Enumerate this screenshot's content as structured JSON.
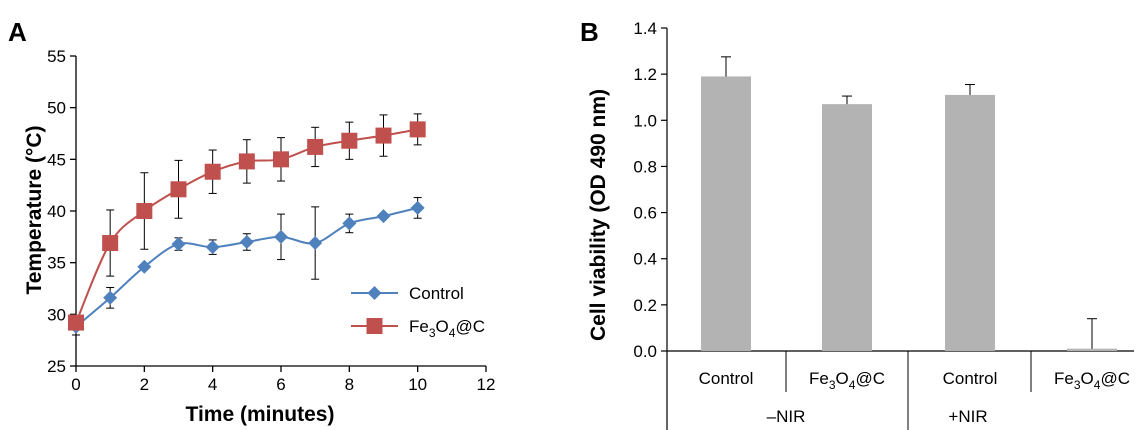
{
  "chart_data": [
    {
      "panel_label": "A",
      "type": "line",
      "xlabel": "Time (minutes)",
      "ylabel": "Temperature (°C)",
      "xlim": [
        0,
        12
      ],
      "ylim": [
        25,
        55
      ],
      "xticks": [
        0,
        2,
        4,
        6,
        8,
        10,
        12
      ],
      "yticks": [
        25,
        30,
        35,
        40,
        45,
        50,
        55
      ],
      "grid": false,
      "legend_position": "bottom-right",
      "x": [
        0,
        1,
        2,
        3,
        4,
        5,
        6,
        7,
        8,
        9,
        10
      ],
      "series": [
        {
          "name": "Control",
          "color": "#4f81bd",
          "marker": "diamond",
          "values": [
            28.8,
            31.6,
            34.6,
            36.8,
            36.5,
            37.0,
            37.5,
            36.9,
            38.8,
            39.5,
            40.3
          ],
          "errors": [
            0.8,
            1.0,
            0,
            0.6,
            0.7,
            0.8,
            2.2,
            3.5,
            0.9,
            0,
            1.0
          ]
        },
        {
          "name": "Fe3O4@C",
          "name_parts": [
            "Fe",
            "3",
            "O",
            "4",
            "@C"
          ],
          "color": "#c0504d",
          "marker": "square",
          "values": [
            29.2,
            36.9,
            40.0,
            42.1,
            43.8,
            44.8,
            45.0,
            46.2,
            46.8,
            47.3,
            47.9
          ],
          "errors": [
            0,
            3.2,
            3.7,
            2.8,
            2.1,
            2.1,
            2.1,
            1.9,
            1.8,
            2.0,
            1.5
          ]
        }
      ]
    },
    {
      "panel_label": "B",
      "type": "bar",
      "ylabel": "Cell viability (OD 490 nm)",
      "ylim": [
        0,
        1.4
      ],
      "yticks": [
        "0.0",
        "0.2",
        "0.4",
        "0.6",
        "0.8",
        "1.0",
        "1.2",
        "1.4"
      ],
      "grid": false,
      "bar_color": "#b3b3b3",
      "categories": [
        "Control",
        "Fe3O4@C",
        "Control",
        "Fe3O4@C"
      ],
      "category_parts": [
        [
          "Control"
        ],
        [
          "Fe",
          "3",
          "O",
          "4",
          "@C"
        ],
        [
          "Control"
        ],
        [
          "Fe",
          "3",
          "O",
          "4",
          "@C"
        ]
      ],
      "groups": [
        "–NIR",
        "+NIR"
      ],
      "values": [
        1.19,
        1.07,
        1.11,
        0.01
      ],
      "errors": [
        0.085,
        0.035,
        0.045,
        0.13
      ]
    }
  ]
}
